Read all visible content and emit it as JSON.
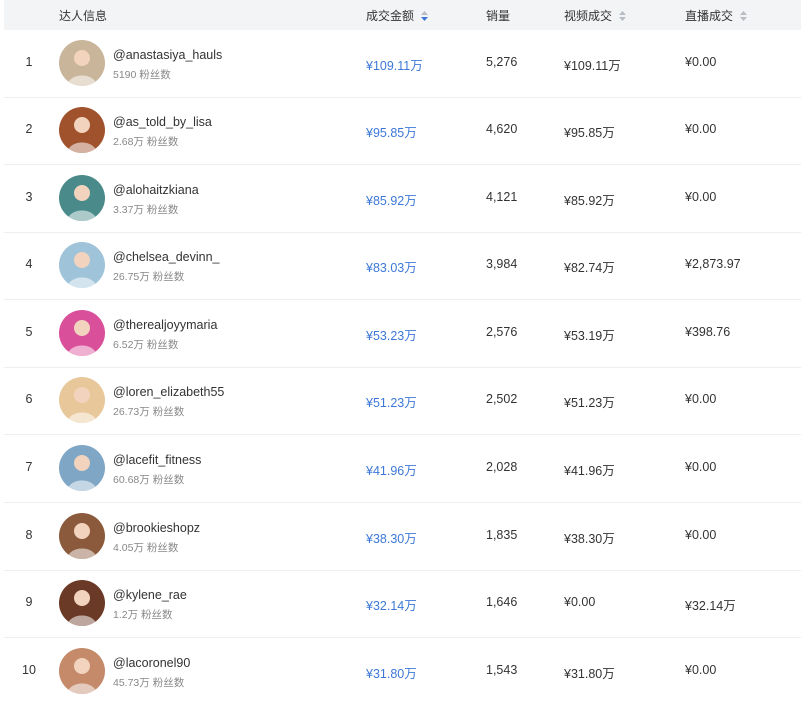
{
  "header": {
    "creator": "达人信息",
    "gmv": "成交金额",
    "sales": "销量",
    "video_gmv": "视频成交",
    "live_gmv": "直播成交"
  },
  "colors": {
    "accent": "#3d78d8",
    "header_bg": "#f3f4f6"
  },
  "rows": [
    {
      "rank": "1",
      "handle": "@anastasiya_hauls",
      "fans": "5190 粉丝数",
      "gmv": "¥109.11万",
      "sales": "5,276",
      "video": "¥109.11万",
      "live": "¥0.00",
      "avatar_color": "#c9b59a"
    },
    {
      "rank": "2",
      "handle": "@as_told_by_lisa",
      "fans": "2.68万 粉丝数",
      "gmv": "¥95.85万",
      "sales": "4,620",
      "video": "¥95.85万",
      "live": "¥0.00",
      "avatar_color": "#a0522d"
    },
    {
      "rank": "3",
      "handle": "@alohaitzkiana",
      "fans": "3.37万 粉丝数",
      "gmv": "¥85.92万",
      "sales": "4,121",
      "video": "¥85.92万",
      "live": "¥0.00",
      "avatar_color": "#4a8a8a"
    },
    {
      "rank": "4",
      "handle": "@chelsea_devinn_",
      "fans": "26.75万 粉丝数",
      "gmv": "¥83.03万",
      "sales": "3,984",
      "video": "¥82.74万",
      "live": "¥2,873.97",
      "avatar_color": "#9fc3d9"
    },
    {
      "rank": "5",
      "handle": "@therealjoyymaria",
      "fans": "6.52万 粉丝数",
      "gmv": "¥53.23万",
      "sales": "2,576",
      "video": "¥53.19万",
      "live": "¥398.76",
      "avatar_color": "#d94f9a"
    },
    {
      "rank": "6",
      "handle": "@loren_elizabeth55",
      "fans": "26.73万 粉丝数",
      "gmv": "¥51.23万",
      "sales": "2,502",
      "video": "¥51.23万",
      "live": "¥0.00",
      "avatar_color": "#e8c89a"
    },
    {
      "rank": "7",
      "handle": "@lacefit_fitness",
      "fans": "60.68万 粉丝数",
      "gmv": "¥41.96万",
      "sales": "2,028",
      "video": "¥41.96万",
      "live": "¥0.00",
      "avatar_color": "#7fa6c4"
    },
    {
      "rank": "8",
      "handle": "@brookieshopz",
      "fans": "4.05万 粉丝数",
      "gmv": "¥38.30万",
      "sales": "1,835",
      "video": "¥38.30万",
      "live": "¥0.00",
      "avatar_color": "#8b5a3c"
    },
    {
      "rank": "9",
      "handle": "@kylene_rae",
      "fans": "1.2万 粉丝数",
      "gmv": "¥32.14万",
      "sales": "1,646",
      "video": "¥0.00",
      "live": "¥32.14万",
      "avatar_color": "#6b3a26"
    },
    {
      "rank": "10",
      "handle": "@lacoronel90",
      "fans": "45.73万 粉丝数",
      "gmv": "¥31.80万",
      "sales": "1,543",
      "video": "¥31.80万",
      "live": "¥0.00",
      "avatar_color": "#c48a6a"
    }
  ]
}
